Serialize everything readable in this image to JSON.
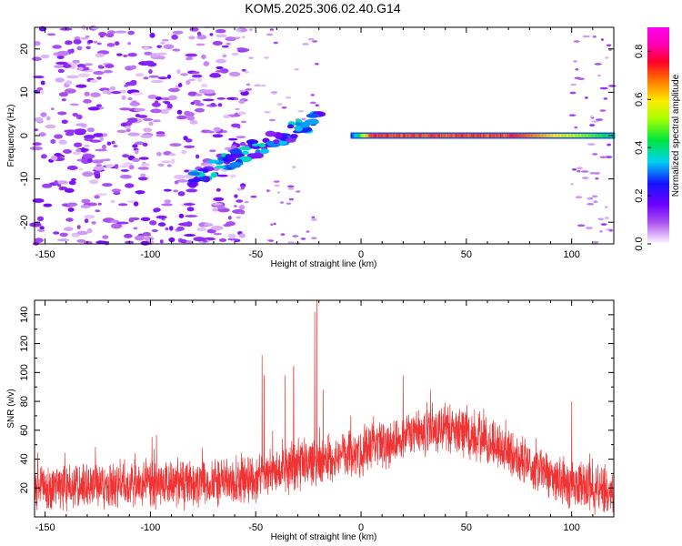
{
  "title": "KOM5.2025.306.02.40.G14",
  "chart_data": [
    {
      "type": "heatmap",
      "xlabel": "Height of straight line (km)",
      "ylabel": "Frequency (Hz)",
      "xlim": [
        -155,
        120
      ],
      "ylim": [
        -25,
        25
      ],
      "xticks": [
        -150,
        -100,
        -50,
        0,
        50,
        100
      ],
      "yticks": [
        -20,
        -10,
        0,
        10,
        20
      ],
      "colorbar": {
        "label": "Normalized spectral amplitude",
        "range": [
          0.0,
          0.9
        ],
        "ticks": [
          "0.0",
          "0.2",
          "0.4",
          "0.6",
          "0.8"
        ],
        "colormap": "rainbow (white, violet, blue, cyan, green, yellow, orange, red, magenta)"
      },
      "features": {
        "ridge_frequency_hz": 0,
        "ridge_start_km": -5,
        "ridge_end_km": 120,
        "ridge_peak_amplitude": 0.75,
        "ridge_peak_km": [
          5,
          70
        ],
        "scatter_noise_region_km": [
          -155,
          -55
        ],
        "scatter_noise_amplitude": 0.15,
        "diagonal_cluster_km": [
          -80,
          -20
        ],
        "diagonal_cluster_freq_hz": [
          -10,
          4
        ],
        "diagonal_cluster_amplitude": 0.3
      }
    },
    {
      "type": "line",
      "xlabel": "Height of straight line (km)",
      "ylabel": "SNR (v/v)",
      "xlim": [
        -155,
        120
      ],
      "ylim": [
        0,
        150
      ],
      "xticks": [
        -150,
        -100,
        -50,
        0,
        50,
        100
      ],
      "yticks": [
        20,
        40,
        60,
        80,
        100,
        120,
        140
      ],
      "series": [
        {
          "color": "#f03232",
          "profile_x": [
            -155,
            -120,
            -90,
            -60,
            -50,
            -40,
            -30,
            -20,
            -10,
            0,
            10,
            20,
            30,
            40,
            50,
            60,
            70,
            80,
            90,
            100,
            110,
            120
          ],
          "profile_mean": [
            20,
            22,
            23,
            24,
            28,
            30,
            36,
            38,
            42,
            45,
            50,
            55,
            60,
            62,
            57,
            52,
            45,
            36,
            28,
            23,
            20,
            17
          ],
          "noise_amplitude": 15,
          "samples": 2600,
          "spikes": [
            {
              "x": -47,
              "y": 112
            },
            {
              "x": -46,
              "y": 98
            },
            {
              "x": -36,
              "y": 98
            },
            {
              "x": -32,
              "y": 104
            },
            {
              "x": -22,
              "y": 142
            },
            {
              "x": -21,
              "y": 150
            },
            {
              "x": -18,
              "y": 88
            },
            {
              "x": 20,
              "y": 98
            },
            {
              "x": 33,
              "y": 88
            },
            {
              "x": 100,
              "y": 80
            }
          ]
        }
      ]
    }
  ]
}
